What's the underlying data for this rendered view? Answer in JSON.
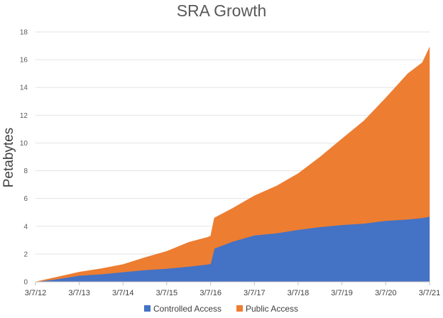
{
  "chart_data": {
    "type": "area",
    "stacked": true,
    "title": "SRA Growth",
    "ylabel": "Petabytes",
    "xlabel": "",
    "ylim": [
      0,
      18
    ],
    "yticks": [
      "0",
      "2",
      "4",
      "6",
      "8",
      "10",
      "12",
      "14",
      "16",
      "18"
    ],
    "x_tick_labels": [
      "3/7/12",
      "3/7/13",
      "3/7/14",
      "3/7/15",
      "3/7/16",
      "3/7/17",
      "3/7/18",
      "3/7/19",
      "3/7/20",
      "3/7/21"
    ],
    "grid": true,
    "legend_position": "bottom",
    "x": [
      "3/7/12",
      "9/7/12",
      "3/7/13",
      "9/7/13",
      "3/7/14",
      "9/7/14",
      "3/7/15",
      "9/7/15",
      "2/7/16",
      "3/7/16",
      "4/7/16",
      "9/7/16",
      "3/7/17",
      "9/7/17",
      "3/7/18",
      "9/7/18",
      "3/7/19",
      "9/7/19",
      "3/7/20",
      "9/7/20",
      "1/7/21",
      "3/7/21"
    ],
    "series": [
      {
        "name": "Controlled Access",
        "color": "#4472C4",
        "values": [
          0.0,
          0.2,
          0.45,
          0.55,
          0.7,
          0.85,
          0.95,
          1.1,
          1.25,
          1.3,
          2.4,
          2.9,
          3.35,
          3.5,
          3.75,
          3.95,
          4.1,
          4.2,
          4.4,
          4.5,
          4.6,
          4.7
        ]
      },
      {
        "name": "Public  Access",
        "color": "#ED7D31",
        "values": [
          0.0,
          0.15,
          0.25,
          0.4,
          0.55,
          0.9,
          1.25,
          1.75,
          1.95,
          2.0,
          2.2,
          2.4,
          2.85,
          3.4,
          4.05,
          5.05,
          6.2,
          7.4,
          8.85,
          10.5,
          11.2,
          12.2
        ]
      }
    ]
  }
}
